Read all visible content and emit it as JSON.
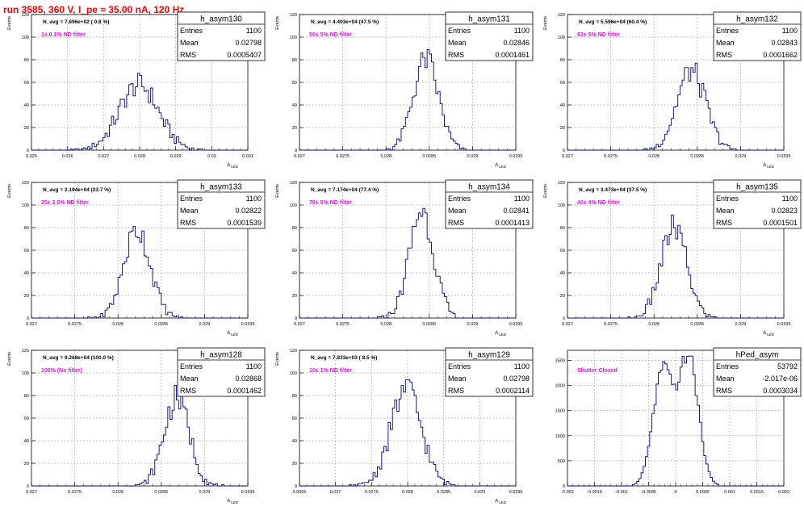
{
  "page_title": "run 3585,   360 V, I_pe ≈ 35.00 nA, 120 Hz",
  "colors": {
    "title": "#ff0000",
    "histogram": "#00007f",
    "annotation": "#ff00ff",
    "grid": "#999999"
  },
  "chart_data": [
    {
      "type": "histogram",
      "name": "h_asym130",
      "ylabel": "Events",
      "xlabel": "A_LED",
      "ylim": [
        0,
        120
      ],
      "yticks": [
        0,
        20,
        40,
        60,
        80,
        100,
        120
      ],
      "xlim": [
        0.025,
        0.031
      ],
      "xticks": [
        0.025,
        0.026,
        0.027,
        0.028,
        0.029,
        0.03,
        0.031
      ],
      "xtick_labels": [
        "0.025",
        "0.026",
        "0.027",
        "0.028",
        "0.029",
        "0.03",
        "0.031"
      ],
      "n_avg": "N_avg = 7.696e+02 ( 0.8 %)",
      "filter": "1± 0.1% ND filter",
      "stats": {
        "entries": "1100",
        "mean": "0.02798",
        "rms": "0.0005407"
      },
      "mean_value": 0.02798,
      "rms_value": 0.0005407,
      "peak": 58,
      "grid": true,
      "stats_box": "top-right"
    },
    {
      "type": "histogram",
      "name": "h_asym131",
      "ylabel": "Events",
      "xlabel": "A_LED",
      "ylim": [
        0,
        120
      ],
      "yticks": [
        0,
        20,
        40,
        60,
        80,
        100,
        120
      ],
      "xlim": [
        0.027,
        0.0295
      ],
      "xticks": [
        0.027,
        0.0275,
        0.028,
        0.0285,
        0.029,
        0.0295
      ],
      "xtick_labels": [
        "0.027",
        "0.0275",
        "0.028",
        "0.0285",
        "0.029",
        "0.0295"
      ],
      "n_avg": "N_avg = 4.403e+04 (47.5 %)",
      "filter": "50± 5% ND filter",
      "stats": {
        "entries": "1100",
        "mean": "0.02846",
        "rms": "0.0001461"
      },
      "mean_value": 0.02846,
      "rms_value": 0.0001461,
      "peak": 80,
      "grid": true,
      "stats_box": "top-right"
    },
    {
      "type": "histogram",
      "name": "h_asym132",
      "ylabel": "Events",
      "xlabel": "A_LED",
      "ylim": [
        0,
        120
      ],
      "yticks": [
        0,
        20,
        40,
        60,
        80,
        100,
        120
      ],
      "xlim": [
        0.027,
        0.0295
      ],
      "xticks": [
        0.027,
        0.0275,
        0.028,
        0.0285,
        0.029,
        0.0295
      ],
      "xtick_labels": [
        "0.027",
        "0.0275",
        "0.028",
        "0.0285",
        "0.029",
        "0.0295"
      ],
      "n_avg": "N_avg = 5.596e+04 (60.4 %)",
      "filter": "63± 5% ND filter",
      "stats": {
        "entries": "1100",
        "mean": "0.02843",
        "rms": "0.0001662"
      },
      "mean_value": 0.02843,
      "rms_value": 0.0001662,
      "peak": 70,
      "grid": true,
      "stats_box": "top-right"
    },
    {
      "type": "histogram",
      "name": "h_asym133",
      "ylabel": "Events",
      "xlabel": "A_LED",
      "ylim": [
        0,
        120
      ],
      "yticks": [
        0,
        20,
        40,
        60,
        80,
        100,
        120
      ],
      "xlim": [
        0.027,
        0.0295
      ],
      "xticks": [
        0.027,
        0.0275,
        0.028,
        0.0285,
        0.029,
        0.0295
      ],
      "xtick_labels": [
        "0.027",
        "0.0275",
        "0.028",
        "0.0285",
        "0.029",
        "0.0295"
      ],
      "n_avg": "N_avg = 2.194e+04 (23.7 %)",
      "filter": "25± 2.5% ND filter",
      "stats": {
        "entries": "1100",
        "mean": "0.02822",
        "rms": "0.0001539"
      },
      "mean_value": 0.02822,
      "rms_value": 0.0001539,
      "peak": 78,
      "grid": true,
      "stats_box": "top-right"
    },
    {
      "type": "histogram",
      "name": "h_asym134",
      "ylabel": "Events",
      "xlabel": "A_LED",
      "ylim": [
        0,
        120
      ],
      "yticks": [
        0,
        20,
        40,
        60,
        80,
        100,
        120
      ],
      "xlim": [
        0.027,
        0.0295
      ],
      "xticks": [
        0.027,
        0.0275,
        0.028,
        0.0285,
        0.029,
        0.0295
      ],
      "xtick_labels": [
        "0.027",
        "0.0275",
        "0.028",
        "0.0285",
        "0.029",
        "0.0295"
      ],
      "n_avg": "N_avg = 7.174e+04 (77.4 %)",
      "filter": "79± 5% ND filter",
      "stats": {
        "entries": "1100",
        "mean": "0.02841",
        "rms": "0.0001413"
      },
      "mean_value": 0.02841,
      "rms_value": 0.0001413,
      "peak": 95,
      "grid": true,
      "stats_box": "top-right"
    },
    {
      "type": "histogram",
      "name": "h_asym135",
      "ylabel": "Events",
      "xlabel": "A_LED",
      "ylim": [
        0,
        120
      ],
      "yticks": [
        0,
        20,
        40,
        60,
        80,
        100,
        120
      ],
      "xlim": [
        0.027,
        0.0295
      ],
      "xticks": [
        0.027,
        0.0275,
        0.028,
        0.0285,
        0.029,
        0.0295
      ],
      "xtick_labels": [
        "0.027",
        "0.0275",
        "0.028",
        "0.0285",
        "0.029",
        "0.0295"
      ],
      "n_avg": "N_avg = 3.473e+04 (37.5 %)",
      "filter": "40± 4% ND filter",
      "stats": {
        "entries": "1100",
        "mean": "0.02823",
        "rms": "0.0001501"
      },
      "mean_value": 0.02823,
      "rms_value": 0.0001501,
      "peak": 80,
      "grid": true,
      "stats_box": "top-right"
    },
    {
      "type": "histogram",
      "name": "h_asym128",
      "ylabel": "Events",
      "xlabel": "A_LED",
      "ylim": [
        0,
        120
      ],
      "yticks": [
        0,
        20,
        40,
        60,
        80,
        100,
        120
      ],
      "xlim": [
        0.027,
        0.0295
      ],
      "xticks": [
        0.027,
        0.0275,
        0.028,
        0.0285,
        0.029,
        0.0295
      ],
      "xtick_labels": [
        "0.027",
        "0.0275",
        "0.028",
        "0.0285",
        "0.029",
        "0.0295"
      ],
      "n_avg": "N_avg = 9.268e+04 (100.0 %)",
      "filter": "100% (No filter)",
      "stats": {
        "entries": "1100",
        "mean": "0.02868",
        "rms": "0.0001462"
      },
      "mean_value": 0.02868,
      "rms_value": 0.0001462,
      "peak": 78,
      "grid": true,
      "stats_box": "top-right"
    },
    {
      "type": "histogram",
      "name": "h_asym129",
      "ylabel": "Events",
      "xlabel": "A_LED",
      "ylim": [
        0,
        120
      ],
      "yticks": [
        0,
        20,
        40,
        60,
        80,
        100,
        120
      ],
      "xlim": [
        0.0265,
        0.0295
      ],
      "xticks": [
        0.0265,
        0.027,
        0.0275,
        0.028,
        0.0285,
        0.029,
        0.0295
      ],
      "xtick_labels": [
        "0.0265",
        "0.027",
        "0.0275",
        "0.028",
        "0.0285",
        "0.029",
        "0.0295"
      ],
      "n_avg": "N_avg = 7.833e+03 ( 8.5 %)",
      "filter": "10± 1% ND filter",
      "stats": {
        "entries": "1100",
        "mean": "0.02798",
        "rms": "0.0002114"
      },
      "mean_value": 0.02798,
      "rms_value": 0.0002114,
      "peak": 86,
      "grid": true,
      "stats_box": "top-right"
    },
    {
      "type": "histogram",
      "name": "hPed_asym",
      "ylabel": "",
      "xlabel": "",
      "ylim": [
        0,
        2700
      ],
      "yticks": [
        0,
        500,
        1000,
        1500,
        2000,
        2500
      ],
      "xlim": [
        -0.002,
        0.002
      ],
      "xticks": [
        -0.002,
        -0.0015,
        -0.001,
        -0.0005,
        0,
        0.0005,
        0.001,
        0.0015,
        0.002
      ],
      "xtick_labels": [
        "-0.002",
        "-0.0015",
        "-0.001",
        "-0.0005",
        "0",
        "0.0005",
        "0.001",
        "0.0015",
        "0.002"
      ],
      "n_avg": "",
      "filter": "Shutter Closed",
      "stats": {
        "entries": "53792",
        "mean": "-2.017e-06",
        "rms": "0.0003034"
      },
      "bimodal": {
        "centers": [
          -0.00024,
          0.00024
        ],
        "sigma": 0.00018,
        "peaks": [
          2280,
          2560
        ]
      },
      "grid": true,
      "stats_box": "top-right"
    }
  ],
  "stats_labels": {
    "entries": "Entries",
    "mean": "Mean",
    "rms": "RMS"
  }
}
